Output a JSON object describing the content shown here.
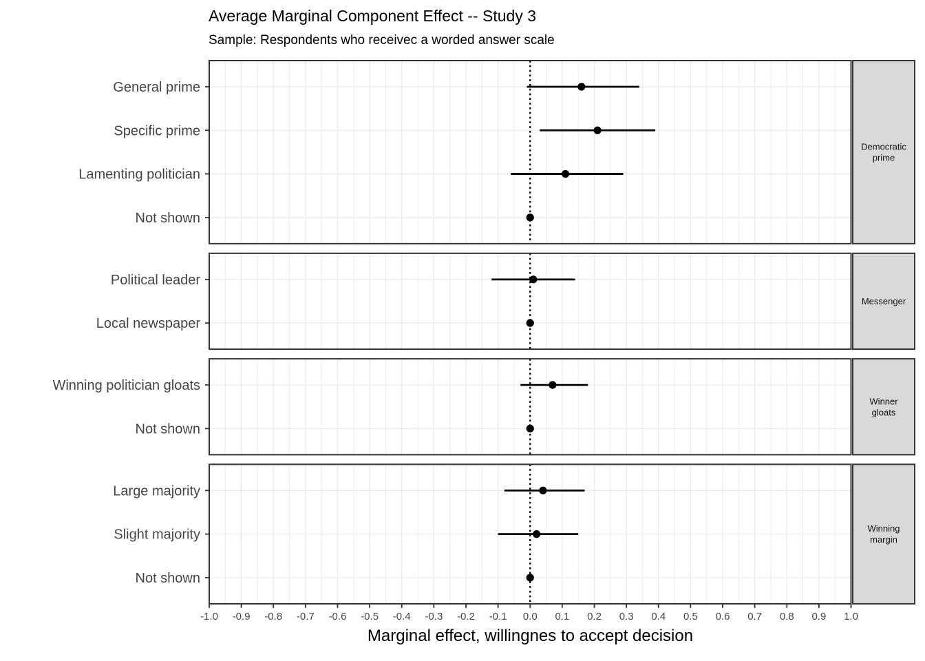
{
  "header": {
    "title": "Average Marginal Component Effect -- Study 3",
    "subtitle": "Sample: Respondents who receivec a worded answer scale"
  },
  "axis": {
    "xlabel": "Marginal effect, willingnes to accept decision"
  },
  "chart_data": {
    "type": "scatter",
    "subtype": "faceted-coefficient-pointrange",
    "title": "Average Marginal Component Effect -- Study 3",
    "subtitle": "Sample: Respondents who receivec a worded answer scale",
    "xlabel": "Marginal effect, willingnes to accept decision",
    "xlim": [
      -1.0,
      1.0
    ],
    "x_tick_step": 0.1,
    "x_tick_labels": [
      "-1.0",
      "-0.9",
      "-0.8",
      "-0.7",
      "-0.6",
      "-0.5",
      "-0.4",
      "-0.3",
      "-0.2",
      "-0.1",
      "0.0",
      "0.1",
      "0.2",
      "0.3",
      "0.4",
      "0.5",
      "0.6",
      "0.7",
      "0.8",
      "0.9",
      "1.0"
    ],
    "minor_grid_step": 0.05,
    "grid": true,
    "legend_position": "none",
    "zero_reference_line": 0.0,
    "facets": [
      {
        "label": "Democratic prime",
        "label_lines": [
          "Democratic",
          "prime"
        ],
        "rows": [
          {
            "label": "General prime",
            "estimate": 0.16,
            "ci_low": -0.01,
            "ci_high": 0.34
          },
          {
            "label": "Specific prime",
            "estimate": 0.21,
            "ci_low": 0.03,
            "ci_high": 0.39
          },
          {
            "label": "Lamenting politician",
            "estimate": 0.11,
            "ci_low": -0.06,
            "ci_high": 0.29
          },
          {
            "label": "Not shown",
            "estimate": 0.0,
            "ci_low": null,
            "ci_high": null
          }
        ]
      },
      {
        "label": "Messenger",
        "label_lines": [
          "Messenger"
        ],
        "rows": [
          {
            "label": "Political leader",
            "estimate": 0.01,
            "ci_low": -0.12,
            "ci_high": 0.14
          },
          {
            "label": "Local newspaper",
            "estimate": 0.0,
            "ci_low": null,
            "ci_high": null
          }
        ]
      },
      {
        "label": "Winner gloats",
        "label_lines": [
          "Winner",
          "gloats"
        ],
        "rows": [
          {
            "label": "Winning politician gloats",
            "estimate": 0.07,
            "ci_low": -0.03,
            "ci_high": 0.18
          },
          {
            "label": "Not shown",
            "estimate": 0.0,
            "ci_low": null,
            "ci_high": null
          }
        ]
      },
      {
        "label": "Winning margin",
        "label_lines": [
          "Winning",
          "margin"
        ],
        "rows": [
          {
            "label": "Large majority",
            "estimate": 0.04,
            "ci_low": -0.08,
            "ci_high": 0.17
          },
          {
            "label": "Slight majority",
            "estimate": 0.02,
            "ci_low": -0.1,
            "ci_high": 0.15
          },
          {
            "label": "Not shown",
            "estimate": 0.0,
            "ci_low": null,
            "ci_high": null
          }
        ]
      }
    ],
    "colors": {
      "point": "#000000",
      "error_bar": "#000000",
      "zero_line": "#000000",
      "gridline": "#EBEBEB",
      "panel_border": "#333333",
      "panel_bg": "#FFFFFF",
      "strip_fill": "#D9D9D9",
      "strip_text": "#111111",
      "axis_text": "#454545",
      "tick_mark": "#333333"
    }
  }
}
